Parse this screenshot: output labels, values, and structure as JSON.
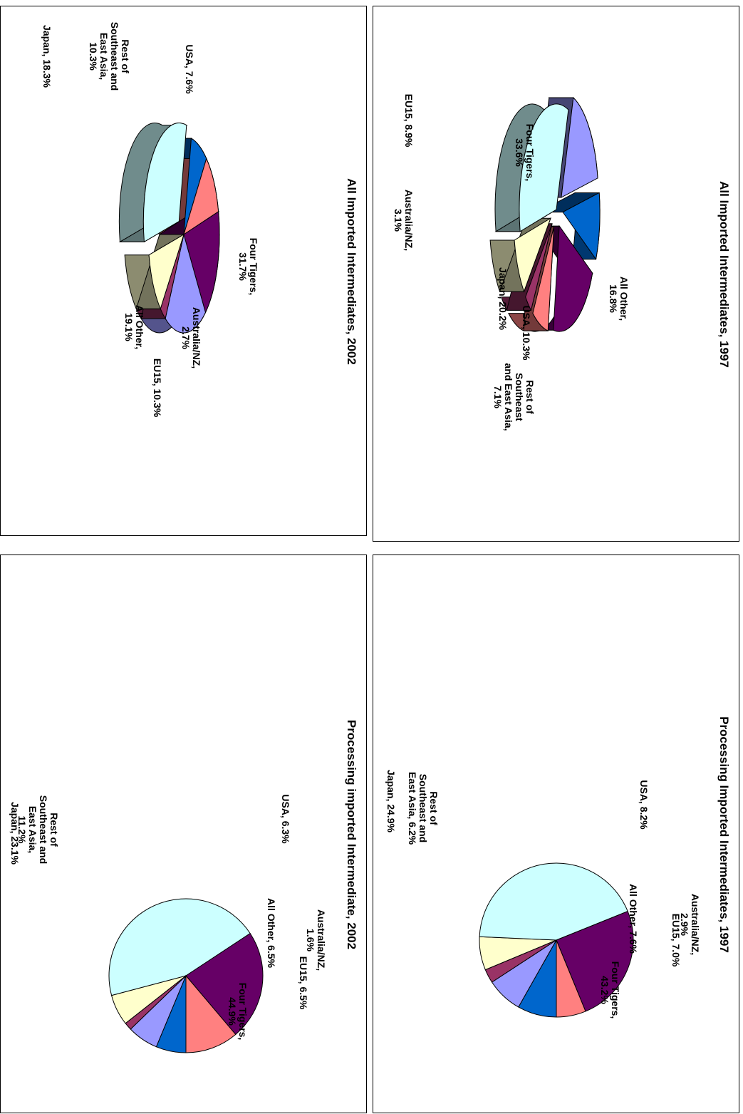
{
  "chart_data": [
    {
      "id": "tr",
      "type": "pie",
      "style": "exploded-3d",
      "title": "All Imported Intermediates, 1997",
      "slices": [
        {
          "name": "Four Tigers",
          "value": 33.6,
          "label": [
            "Four Tigers,",
            "33.6%"
          ],
          "color": "#CCFFFF",
          "explode": 0
        },
        {
          "name": "All Other",
          "value": 16.8,
          "label": [
            "All Other,",
            "16.8%"
          ],
          "color": "#9999FF",
          "explode": 1
        },
        {
          "name": "USA",
          "value": 10.3,
          "label": [
            "USA, 10.3%"
          ],
          "color": "#0066CC",
          "explode": 1
        },
        {
          "name": "Japan",
          "value": 20.2,
          "label": [
            "Japan, 20.2%"
          ],
          "color": "#660066",
          "explode": 1
        },
        {
          "name": "Rest of Southeast and East Asia",
          "value": 7.1,
          "label": [
            "Rest of",
            "Southeast",
            "and East Asia,",
            "7.1%"
          ],
          "color": "#FF8080",
          "explode": 1
        },
        {
          "name": "Australia/NZ",
          "value": 3.1,
          "label": [
            "Australia/NZ,",
            "3.1%"
          ],
          "color": "#993366",
          "explode": 1
        },
        {
          "name": "EU15",
          "value": 8.9,
          "label": [
            "EU15, 8.9%"
          ],
          "color": "#FFFFCC",
          "explode": 1
        }
      ]
    },
    {
      "id": "tl",
      "type": "pie",
      "style": "exploded-3d",
      "title": "All Imported Intermediates, 2002",
      "slices": [
        {
          "name": "Four Tigers",
          "value": 31.7,
          "label": [
            "Four Tigers,",
            "31.7%"
          ],
          "color": "#CCFFFF",
          "explode": 1
        },
        {
          "name": "USA",
          "value": 7.6,
          "label": [
            "USA, 7.6%"
          ],
          "color": "#0066CC",
          "explode": 0
        },
        {
          "name": "Rest of Southeast and East Asia",
          "value": 10.3,
          "label": [
            "Rest of",
            "Southeast and",
            "East Asia,",
            "10.3%"
          ],
          "color": "#FF8080",
          "explode": 0
        },
        {
          "name": "Japan",
          "value": 18.3,
          "label": [
            "Japan, 18.3%"
          ],
          "color": "#660066",
          "explode": 0
        },
        {
          "name": "All Other",
          "value": 19.1,
          "label": [
            "All Other,",
            "19.1%"
          ],
          "color": "#9999FF",
          "explode": 0
        },
        {
          "name": "Australia/NZ",
          "value": 2.7,
          "label": [
            "Australia/NZ,",
            "2.7%"
          ],
          "color": "#993366",
          "explode": 0
        },
        {
          "name": "EU15",
          "value": 10.3,
          "label": [
            "EU15, 10.3%"
          ],
          "color": "#FFFFCC",
          "explode": 0
        }
      ]
    },
    {
      "id": "br",
      "type": "pie",
      "style": "flat",
      "title": "Processing Imported Intermediates, 1997",
      "slices": [
        {
          "name": "USA",
          "value": 8.2,
          "label": [
            "USA, 8.2%"
          ],
          "color": "#0066CC"
        },
        {
          "name": "All Other",
          "value": 7.6,
          "label": [
            "All Other, 7.6%"
          ],
          "color": "#9999FF"
        },
        {
          "name": "Australia/NZ",
          "value": 2.9,
          "label": [
            "Australia/NZ,",
            "2.9%"
          ],
          "color": "#993366"
        },
        {
          "name": "EU15",
          "value": 7.0,
          "label": [
            "EU15, 7.0%"
          ],
          "color": "#FFFFCC"
        },
        {
          "name": "Four Tigers",
          "value": 43.2,
          "label": [
            "Four Tigers,",
            "43.2%"
          ],
          "color": "#CCFFFF"
        },
        {
          "name": "Japan",
          "value": 24.9,
          "label": [
            "Japan, 24.9%"
          ],
          "color": "#660066"
        },
        {
          "name": "Rest of Southeast and East Asia",
          "value": 6.2,
          "label": [
            "Rest of",
            "Southeast and",
            "East Asia, 6.2%"
          ],
          "color": "#FF8080"
        }
      ]
    },
    {
      "id": "bl",
      "type": "pie",
      "style": "flat",
      "title": "Processing imported Intermediate, 2002",
      "slices": [
        {
          "name": "USA",
          "value": 6.3,
          "label": [
            "USA, 6.3%"
          ],
          "color": "#0066CC"
        },
        {
          "name": "All Other",
          "value": 6.5,
          "label": [
            "All Other, 6.5%"
          ],
          "color": "#9999FF"
        },
        {
          "name": "Australia/NZ",
          "value": 1.6,
          "label": [
            "Australia/NZ,",
            "1.6%"
          ],
          "color": "#993366"
        },
        {
          "name": "EU15",
          "value": 6.5,
          "label": [
            "EU15, 6.5%"
          ],
          "color": "#FFFFCC"
        },
        {
          "name": "Four Tigers",
          "value": 44.9,
          "label": [
            "Four Tigers,",
            "44.9%"
          ],
          "color": "#CCFFFF"
        },
        {
          "name": "Japan",
          "value": 23.1,
          "label": [
            "Japan, 23.1%"
          ],
          "color": "#660066"
        },
        {
          "name": "Rest of Southeast and East Asia",
          "value": 11.2,
          "label": [
            "Rest of",
            "Southeast and",
            "East Asia,",
            "11.2%"
          ],
          "color": "#FF8080"
        }
      ]
    }
  ]
}
